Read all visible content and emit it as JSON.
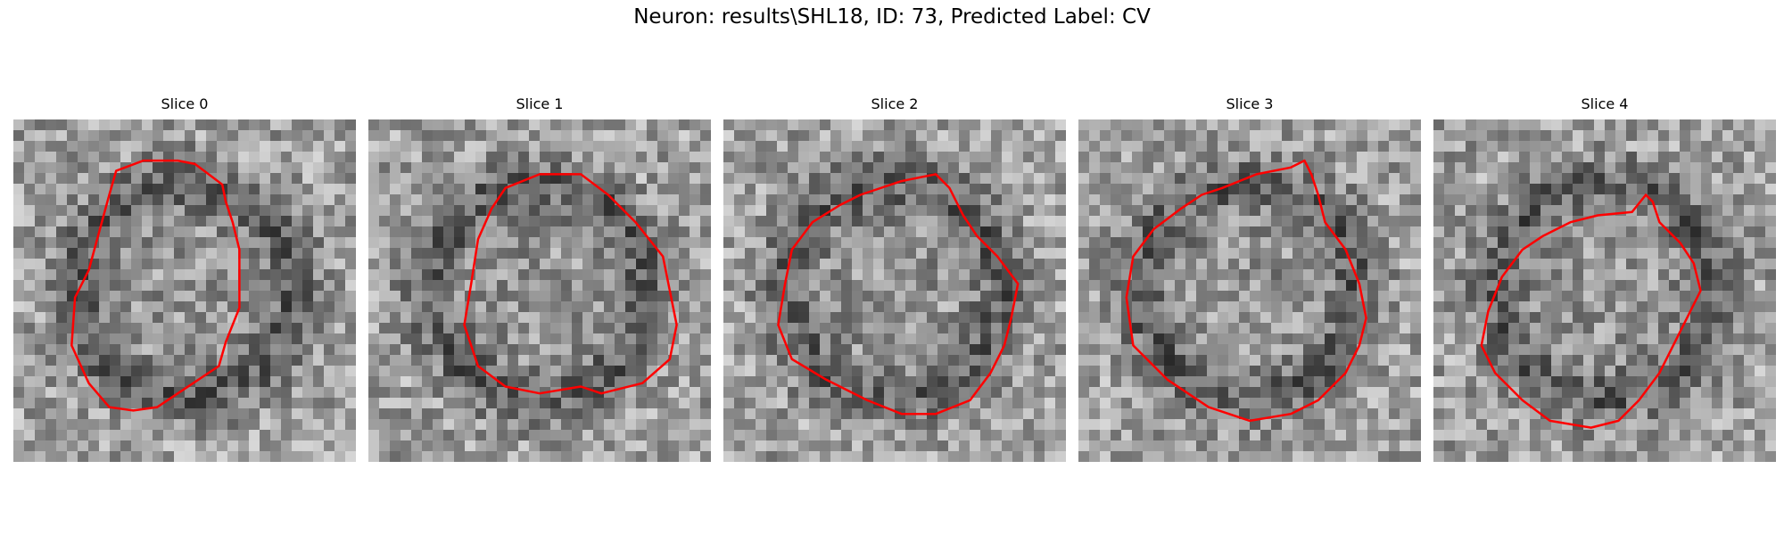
{
  "figure": {
    "title": "Neuron: results\\SHL18, ID: 73, Predicted Label: CV",
    "contour_color": "#ff0000",
    "panels": [
      {
        "title": "Slice 0",
        "seed": 11,
        "contour": [
          [
            0.3,
            0.15
          ],
          [
            0.38,
            0.12
          ],
          [
            0.48,
            0.12
          ],
          [
            0.53,
            0.13
          ],
          [
            0.57,
            0.16
          ],
          [
            0.61,
            0.19
          ],
          [
            0.62,
            0.24
          ],
          [
            0.64,
            0.3
          ],
          [
            0.66,
            0.38
          ],
          [
            0.66,
            0.55
          ],
          [
            0.62,
            0.65
          ],
          [
            0.6,
            0.72
          ],
          [
            0.54,
            0.76
          ],
          [
            0.48,
            0.8
          ],
          [
            0.42,
            0.84
          ],
          [
            0.35,
            0.85
          ],
          [
            0.28,
            0.84
          ],
          [
            0.22,
            0.77
          ],
          [
            0.17,
            0.66
          ],
          [
            0.18,
            0.52
          ],
          [
            0.22,
            0.44
          ],
          [
            0.25,
            0.33
          ],
          [
            0.28,
            0.22
          ]
        ]
      },
      {
        "title": "Slice 1",
        "seed": 23,
        "contour": [
          [
            0.4,
            0.2
          ],
          [
            0.5,
            0.16
          ],
          [
            0.62,
            0.16
          ],
          [
            0.7,
            0.22
          ],
          [
            0.78,
            0.3
          ],
          [
            0.86,
            0.4
          ],
          [
            0.9,
            0.6
          ],
          [
            0.88,
            0.7
          ],
          [
            0.8,
            0.77
          ],
          [
            0.68,
            0.8
          ],
          [
            0.62,
            0.78
          ],
          [
            0.5,
            0.8
          ],
          [
            0.4,
            0.78
          ],
          [
            0.32,
            0.72
          ],
          [
            0.28,
            0.6
          ],
          [
            0.3,
            0.48
          ],
          [
            0.32,
            0.35
          ],
          [
            0.36,
            0.26
          ]
        ]
      },
      {
        "title": "Slice 2",
        "seed": 37,
        "contour": [
          [
            0.4,
            0.22
          ],
          [
            0.52,
            0.18
          ],
          [
            0.62,
            0.16
          ],
          [
            0.66,
            0.2
          ],
          [
            0.7,
            0.28
          ],
          [
            0.74,
            0.34
          ],
          [
            0.8,
            0.4
          ],
          [
            0.86,
            0.48
          ],
          [
            0.84,
            0.58
          ],
          [
            0.82,
            0.66
          ],
          [
            0.78,
            0.74
          ],
          [
            0.72,
            0.82
          ],
          [
            0.62,
            0.86
          ],
          [
            0.52,
            0.86
          ],
          [
            0.42,
            0.82
          ],
          [
            0.3,
            0.76
          ],
          [
            0.2,
            0.7
          ],
          [
            0.16,
            0.6
          ],
          [
            0.18,
            0.48
          ],
          [
            0.2,
            0.38
          ],
          [
            0.26,
            0.3
          ],
          [
            0.34,
            0.25
          ]
        ]
      },
      {
        "title": "Slice 3",
        "seed": 49,
        "contour": [
          [
            0.42,
            0.2
          ],
          [
            0.52,
            0.16
          ],
          [
            0.62,
            0.14
          ],
          [
            0.66,
            0.12
          ],
          [
            0.68,
            0.16
          ],
          [
            0.7,
            0.22
          ],
          [
            0.72,
            0.3
          ],
          [
            0.78,
            0.38
          ],
          [
            0.82,
            0.48
          ],
          [
            0.84,
            0.58
          ],
          [
            0.82,
            0.66
          ],
          [
            0.78,
            0.74
          ],
          [
            0.7,
            0.82
          ],
          [
            0.62,
            0.86
          ],
          [
            0.5,
            0.88
          ],
          [
            0.38,
            0.84
          ],
          [
            0.26,
            0.76
          ],
          [
            0.16,
            0.66
          ],
          [
            0.14,
            0.52
          ],
          [
            0.16,
            0.4
          ],
          [
            0.22,
            0.32
          ],
          [
            0.3,
            0.26
          ],
          [
            0.36,
            0.22
          ]
        ]
      },
      {
        "title": "Slice 4",
        "seed": 61,
        "contour": [
          [
            0.4,
            0.3
          ],
          [
            0.48,
            0.28
          ],
          [
            0.58,
            0.27
          ],
          [
            0.62,
            0.22
          ],
          [
            0.64,
            0.24
          ],
          [
            0.66,
            0.3
          ],
          [
            0.72,
            0.36
          ],
          [
            0.76,
            0.42
          ],
          [
            0.78,
            0.5
          ],
          [
            0.74,
            0.58
          ],
          [
            0.7,
            0.66
          ],
          [
            0.66,
            0.74
          ],
          [
            0.6,
            0.82
          ],
          [
            0.54,
            0.88
          ],
          [
            0.46,
            0.9
          ],
          [
            0.34,
            0.88
          ],
          [
            0.26,
            0.82
          ],
          [
            0.18,
            0.74
          ],
          [
            0.14,
            0.66
          ],
          [
            0.16,
            0.56
          ],
          [
            0.2,
            0.46
          ],
          [
            0.26,
            0.38
          ],
          [
            0.32,
            0.34
          ]
        ]
      }
    ]
  }
}
